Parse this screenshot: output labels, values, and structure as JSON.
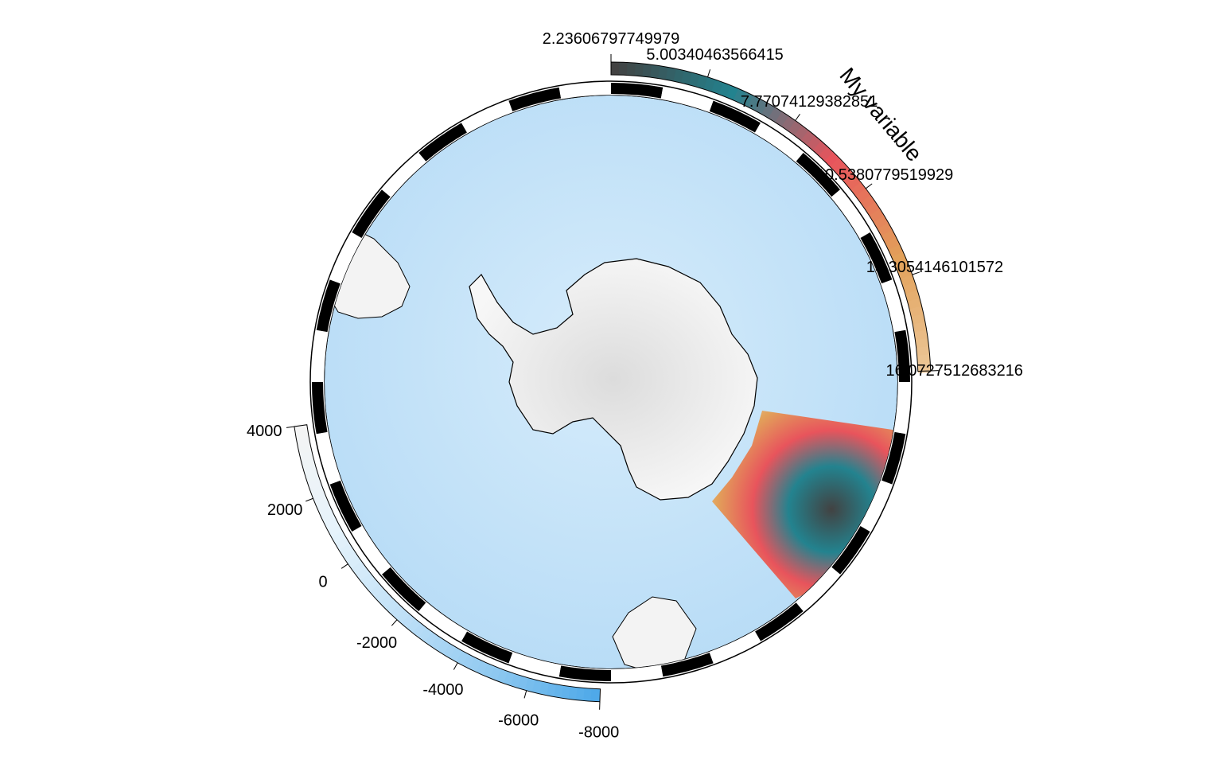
{
  "map": {
    "projection": "south-polar-stereographic",
    "ocean_color": "#bfe0f7",
    "land_color": "#eeeeee",
    "coast_color": "#000000",
    "graticule_colors": [
      "#000000",
      "#ffffff"
    ],
    "graticule_segments": 36
  },
  "variable_legend": {
    "title": "My variable",
    "ticks": [
      "2.23606797749979",
      "5.00340463566415",
      "7.77074129382851",
      "10.5380779519929",
      "13.3054146101572",
      "16.0727512683216"
    ],
    "colors": [
      "#424242",
      "#23838f",
      "#e8545c",
      "#e2a15a",
      "#ecc89a"
    ]
  },
  "bathymetry_legend": {
    "ticks": [
      "4000",
      "2000",
      "0",
      "-2000",
      "-4000",
      "-6000",
      "-8000"
    ],
    "colors": [
      "#f4f4f4",
      "#e6f3fb",
      "#bfe0f7",
      "#8ec8f0",
      "#4aa7e8"
    ]
  },
  "overlay": {
    "icons": [
      "antarctica-landmass",
      "variable-sector-overlay"
    ]
  }
}
